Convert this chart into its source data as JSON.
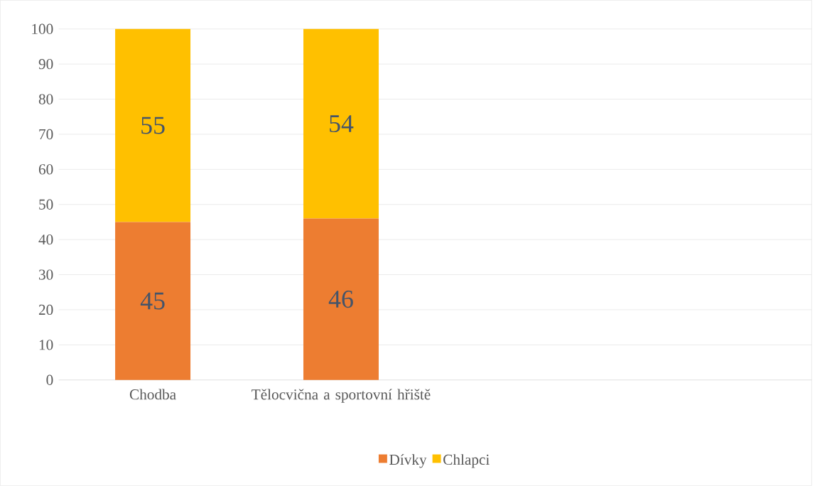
{
  "chart_data": {
    "type": "bar",
    "stacked": true,
    "categories": [
      "Chodba",
      "Tělocvična a sportovní hřiště",
      null,
      null
    ],
    "series": [
      {
        "name": "Dívky",
        "color": "#ed7d31",
        "values": [
          45,
          46,
          null,
          null
        ]
      },
      {
        "name": "Chlapci",
        "color": "#ffc000",
        "values": [
          55,
          54,
          null,
          null
        ]
      }
    ],
    "ylim": [
      0,
      100
    ],
    "yticks": [
      0,
      10,
      20,
      30,
      40,
      50,
      60,
      70,
      80,
      90,
      100
    ],
    "grid": "y",
    "legend": "bottom",
    "data_labels": true
  }
}
